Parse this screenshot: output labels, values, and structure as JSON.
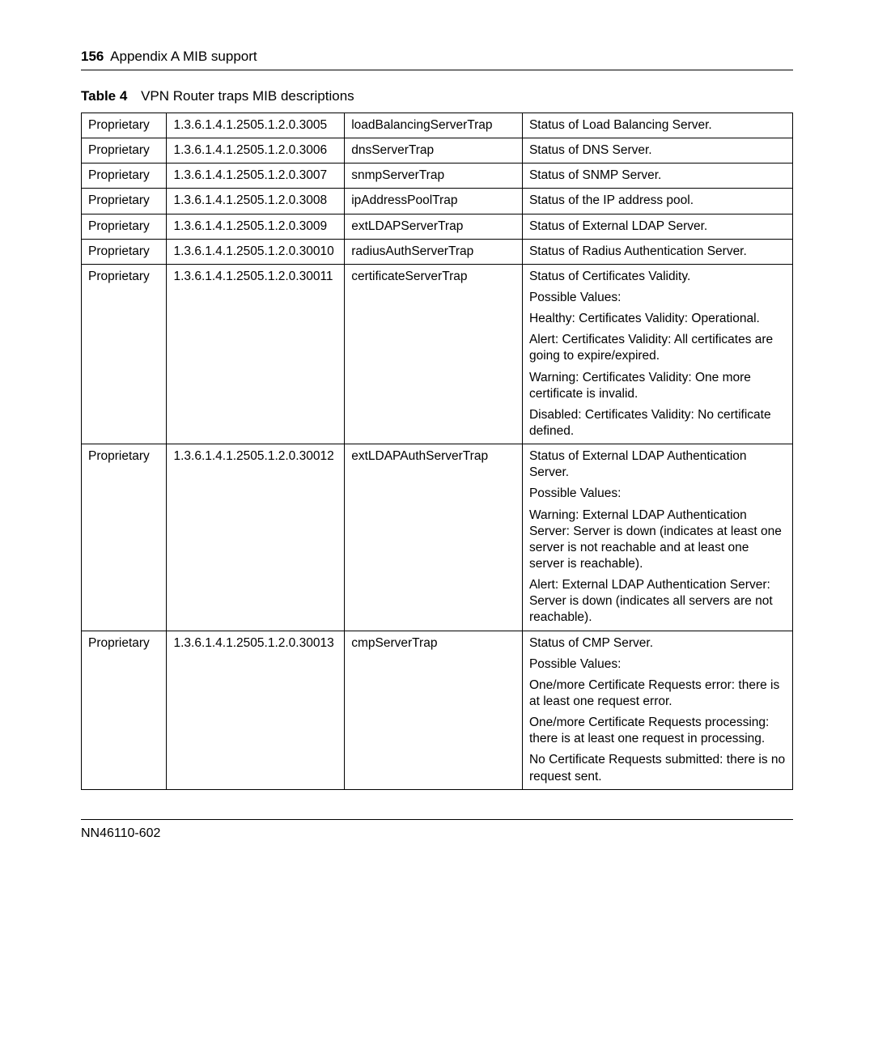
{
  "header": {
    "page_number": "156",
    "title": "Appendix A  MIB support"
  },
  "table_caption": {
    "label": "Table 4",
    "text": "VPN Router traps MIB descriptions"
  },
  "rows": [
    {
      "type": "Proprietary",
      "oid": "1.3.6.1.4.1.2505.1.2.0.3005",
      "name": "loadBalancingServerTrap",
      "desc": [
        "Status of Load Balancing Server."
      ]
    },
    {
      "type": "Proprietary",
      "oid": "1.3.6.1.4.1.2505.1.2.0.3006",
      "name": "dnsServerTrap",
      "desc": [
        "Status of DNS Server."
      ]
    },
    {
      "type": "Proprietary",
      "oid": "1.3.6.1.4.1.2505.1.2.0.3007",
      "name": "snmpServerTrap",
      "desc": [
        "Status of SNMP Server."
      ]
    },
    {
      "type": "Proprietary",
      "oid": "1.3.6.1.4.1.2505.1.2.0.3008",
      "name": "ipAddressPoolTrap",
      "desc": [
        "Status of the IP address pool."
      ]
    },
    {
      "type": "Proprietary",
      "oid": "1.3.6.1.4.1.2505.1.2.0.3009",
      "name": "extLDAPServerTrap",
      "desc": [
        "Status of External LDAP Server."
      ]
    },
    {
      "type": "Proprietary",
      "oid": "1.3.6.1.4.1.2505.1.2.0.30010",
      "name": "radiusAuthServerTrap",
      "desc": [
        "Status of Radius Authentication Server."
      ]
    },
    {
      "type": "Proprietary",
      "oid": "1.3.6.1.4.1.2505.1.2.0.30011",
      "name": "certificateServerTrap",
      "desc": [
        "Status of Certificates Validity.",
        "Possible Values:",
        "Healthy: Certificates Validity: Operational.",
        "Alert: Certificates Validity: All certificates are going to expire/expired.",
        "Warning: Certificates Validity: One more certificate is invalid.",
        "Disabled: Certificates Validity: No certificate defined."
      ]
    },
    {
      "type": "Proprietary",
      "oid": "1.3.6.1.4.1.2505.1.2.0.30012",
      "name": "extLDAPAuthServerTrap",
      "desc": [
        "Status of External LDAP Authentication Server.",
        "Possible Values:",
        "Warning: External LDAP Authentication Server: Server is down (indicates at least one server is not reachable and at least one server is reachable).",
        "Alert: External LDAP Authentication Server: Server is down (indicates all servers are not reachable)."
      ]
    },
    {
      "type": "Proprietary",
      "oid": "1.3.6.1.4.1.2505.1.2.0.30013",
      "name": "cmpServerTrap",
      "desc": [
        "Status of CMP Server.",
        "Possible Values:",
        "One/more Certificate Requests error: there is at least one request error.",
        "One/more Certificate Requests processing: there is at least one request in processing.",
        "No Certificate Requests submitted: there is no request sent."
      ]
    }
  ],
  "footer": {
    "doc_id": "NN46110-602"
  }
}
